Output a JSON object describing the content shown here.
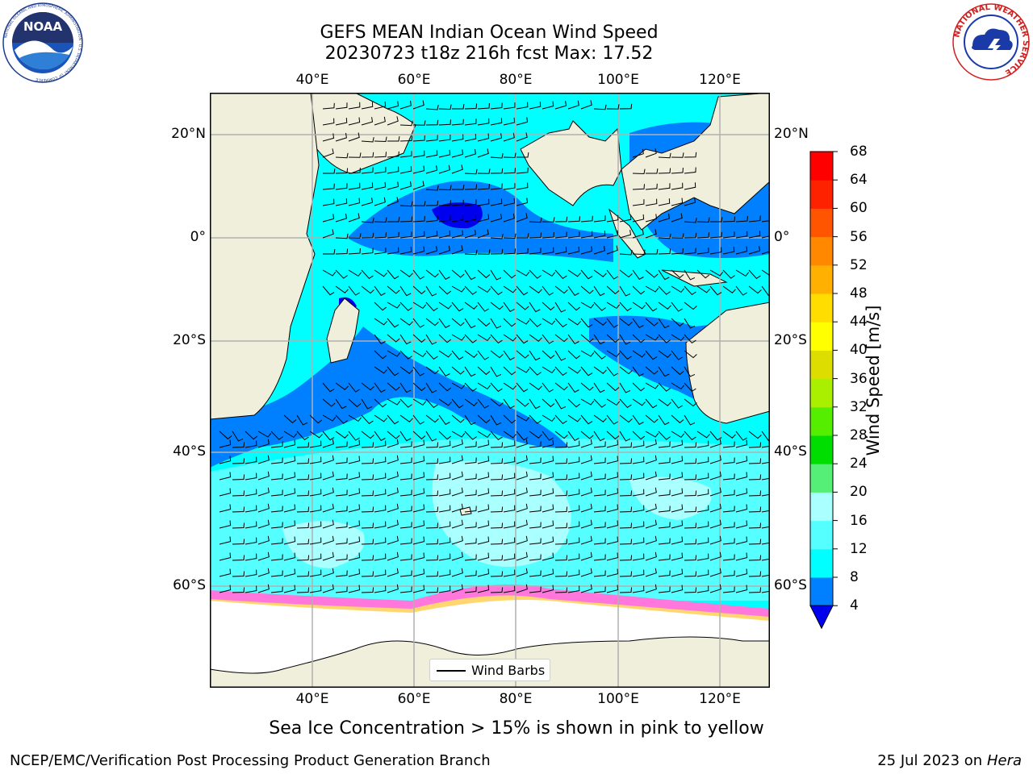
{
  "header": {
    "title_line1": "GEFS MEAN Indian Ocean Wind Speed",
    "title_line2": "20230723 t18z 216h fcst   Max: 17.52"
  },
  "logos": {
    "noaa_text": "NOAA",
    "noaa_ring_text": "NATIONAL OCEANIC AND ATMOSPHERIC ADMINISTRATION · U.S. DEPARTMENT OF COMMERCE",
    "nws_ring_text": "NATIONAL WEATHER SERVICE"
  },
  "map": {
    "lon_ticks": [
      "40°E",
      "60°E",
      "80°E",
      "100°E",
      "120°E"
    ],
    "lat_ticks": [
      "20°N",
      "0°",
      "20°S",
      "40°S",
      "60°S"
    ],
    "legend_label": "Wind Barbs",
    "sea_ice_note": "Sea Ice Concentration > 15% is shown in pink to yellow",
    "colors": {
      "land": "#efefdc",
      "sea_ice_pink": "#ff77dd",
      "sea_ice_yellow": "#ffee55",
      "coast": "#000000"
    }
  },
  "colorbar": {
    "label": "Wind Speed [m/s]",
    "ticks": [
      "68",
      "64",
      "60",
      "56",
      "52",
      "48",
      "44",
      "40",
      "36",
      "32",
      "28",
      "24",
      "20",
      "16",
      "12",
      "8",
      "4"
    ],
    "extend": "min",
    "colors": [
      "#0000ee",
      "#0080ff",
      "#00ffff",
      "#55ffff",
      "#aaffff",
      "#55ee77",
      "#00dd00",
      "#55ee00",
      "#aaee00",
      "#dddd00",
      "#ffff00",
      "#ffdd00",
      "#ffb000",
      "#ff8800",
      "#ff5500",
      "#ff2200",
      "#ff0000"
    ]
  },
  "footer": {
    "left": "NCEP/EMC/Verification Post Processing Product Generation Branch",
    "right_date": "25 Jul 2023 on",
    "right_host": "Hera"
  }
}
